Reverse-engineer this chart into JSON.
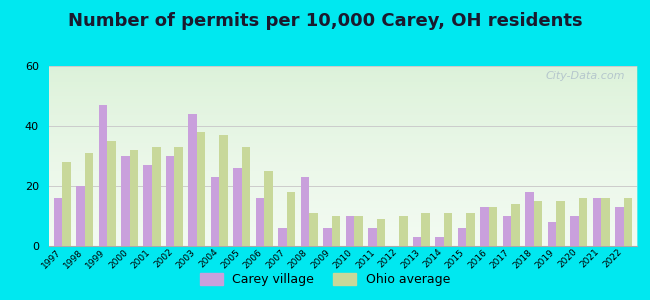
{
  "title": "Number of permits per 10,000 Carey, OH residents",
  "years": [
    1997,
    1998,
    1999,
    2000,
    2001,
    2002,
    2003,
    2004,
    2005,
    2006,
    2007,
    2008,
    2009,
    2010,
    2011,
    2012,
    2013,
    2014,
    2015,
    2016,
    2017,
    2018,
    2019,
    2020,
    2021,
    2022
  ],
  "carey": [
    16,
    20,
    47,
    30,
    27,
    30,
    44,
    23,
    26,
    16,
    6,
    23,
    6,
    10,
    6,
    0,
    3,
    3,
    6,
    13,
    10,
    18,
    8,
    10,
    16,
    13
  ],
  "ohio": [
    28,
    31,
    35,
    32,
    33,
    33,
    38,
    37,
    33,
    25,
    18,
    11,
    10,
    10,
    9,
    10,
    11,
    11,
    11,
    13,
    14,
    15,
    15,
    16,
    16,
    16
  ],
  "carey_color": "#c9a0dc",
  "ohio_color": "#c8d89a",
  "outer_background": "#00e8f0",
  "grid_color": "#cccccc",
  "ylim": [
    0,
    60
  ],
  "yticks": [
    0,
    20,
    40,
    60
  ],
  "watermark": "City-Data.com",
  "legend_carey": "Carey village",
  "legend_ohio": "Ohio average",
  "title_fontsize": 13,
  "bar_width": 0.38
}
